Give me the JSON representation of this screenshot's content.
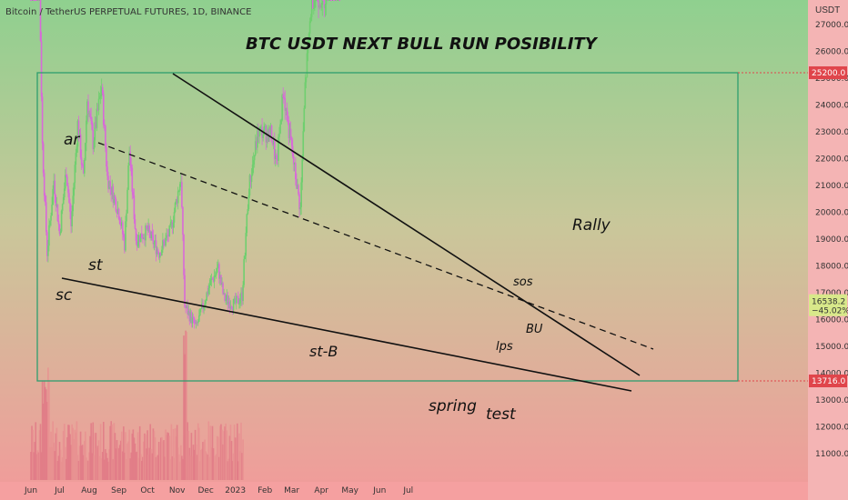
{
  "header": {
    "symbol": "Bitcoin / TetherUS PERPETUAL FUTURES, 1D, BINANCE",
    "currency": "USDT"
  },
  "colors": {
    "bg_top": "#8fd08f",
    "bg_bottom": "#f29a9a",
    "up": "#6fcf6f",
    "down": "#d86ad8",
    "range": "#2e9e6e",
    "level": "#e0454b",
    "last": "#d8e88a"
  },
  "chart_data": {
    "type": "candlestick",
    "title": "BTC USDT NEXT BULL RUN POSIBILITY",
    "x_ticks": [
      "Jun",
      "Jul",
      "Aug",
      "Sep",
      "Oct",
      "Nov",
      "Dec",
      "2023",
      "Feb",
      "Mar",
      "Apr",
      "May",
      "Jun",
      "Jul"
    ],
    "y_ticks": [
      11000,
      12000,
      13000,
      14000,
      15000,
      16000,
      17000,
      18000,
      19000,
      20000,
      21000,
      22000,
      23000,
      24000,
      25000,
      26000,
      27000
    ],
    "ylim": [
      10500,
      28000
    ],
    "levels": [
      {
        "value": 25200,
        "label": "25200.0"
      },
      {
        "value": 13716,
        "label": "13716.0"
      }
    ],
    "last_price": {
      "value": 16538.2,
      "label": "16538.2",
      "change": "−45.02%"
    },
    "price_path": [
      [
        "2022-06-01",
        29500
      ],
      [
        "2022-06-10",
        28500
      ],
      [
        "2022-06-13",
        22500
      ],
      [
        "2022-06-18",
        18500
      ],
      [
        "2022-06-25",
        21200
      ],
      [
        "2022-07-01",
        19200
      ],
      [
        "2022-07-08",
        21600
      ],
      [
        "2022-07-13",
        19500
      ],
      [
        "2022-07-20",
        23300
      ],
      [
        "2022-07-26",
        21200
      ],
      [
        "2022-07-30",
        24200
      ],
      [
        "2022-08-05",
        22600
      ],
      [
        "2022-08-14",
        24700
      ],
      [
        "2022-08-20",
        21300
      ],
      [
        "2022-09-01",
        20000
      ],
      [
        "2022-09-07",
        18800
      ],
      [
        "2022-09-12",
        22300
      ],
      [
        "2022-09-19",
        19000
      ],
      [
        "2022-10-01",
        19300
      ],
      [
        "2022-10-13",
        18500
      ],
      [
        "2022-10-25",
        19300
      ],
      [
        "2022-11-05",
        21300
      ],
      [
        "2022-11-09",
        16500
      ],
      [
        "2022-11-21",
        15700
      ],
      [
        "2022-12-05",
        17300
      ],
      [
        "2022-12-14",
        17900
      ],
      [
        "2022-12-20",
        16800
      ],
      [
        "2022-12-31",
        16550
      ],
      [
        "2023-01-08",
        16900
      ],
      [
        "2023-01-15",
        20900
      ],
      [
        "2023-01-25",
        23000
      ],
      [
        "2023-02-08",
        22900
      ],
      [
        "2023-02-13",
        21700
      ],
      [
        "2023-02-20",
        24500
      ],
      [
        "2023-03-10",
        20100
      ],
      [
        "2023-03-15",
        24700
      ],
      [
        "2023-03-22",
        28000
      ],
      [
        "2023-04-05",
        28000
      ],
      [
        "2023-04-11",
        30200
      ],
      [
        "2023-04-20",
        28600
      ]
    ],
    "annotations": [
      "ar",
      "st",
      "sc",
      "st-B",
      "spring",
      "test",
      "lps",
      "BU",
      "sos",
      "Rally"
    ]
  }
}
